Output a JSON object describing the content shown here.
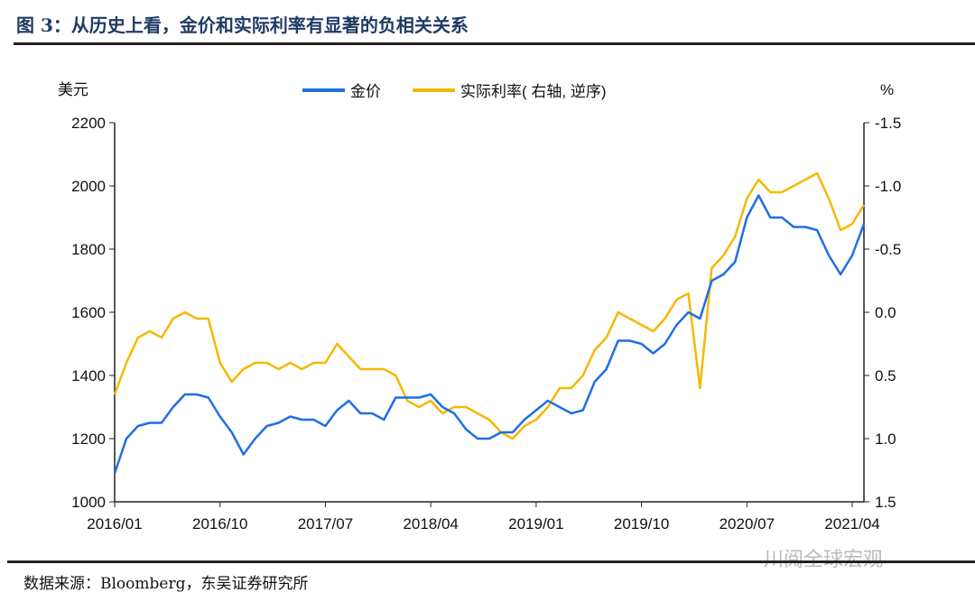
{
  "title": "图 3：从历史上看，金价和实际利率有显著的负相关关系",
  "source": "数据来源：Bloomberg，东吴证券研究所",
  "watermark": "川阅全球宏观",
  "chart_data": {
    "type": "line",
    "left_unit": "美元",
    "right_unit": "%",
    "left_ylim": [
      1000,
      2200
    ],
    "left_ticks": [
      "1000",
      "1200",
      "1400",
      "1600",
      "1800",
      "2000",
      "2200"
    ],
    "right_ylim": [
      1.5,
      -1.5
    ],
    "right_ticks": [
      "1.5",
      "1.0",
      "0.5",
      "0.0",
      "-0.5",
      "-1.0",
      "-1.5"
    ],
    "x_ticks": [
      "2016/01",
      "2016/10",
      "2017/07",
      "2018/04",
      "2019/01",
      "2019/10",
      "2020/07",
      "2021/04"
    ],
    "x_start": "2016/01",
    "x_step": "month",
    "legend": "top-center",
    "series": [
      {
        "name": "金价",
        "axis": "left",
        "color": "#1f6fe5",
        "values": [
          1090,
          1200,
          1240,
          1250,
          1250,
          1300,
          1340,
          1340,
          1330,
          1270,
          1220,
          1150,
          1200,
          1240,
          1250,
          1270,
          1260,
          1260,
          1240,
          1290,
          1320,
          1280,
          1280,
          1260,
          1330,
          1330,
          1330,
          1340,
          1300,
          1280,
          1230,
          1200,
          1200,
          1220,
          1220,
          1260,
          1290,
          1320,
          1300,
          1280,
          1290,
          1380,
          1420,
          1510,
          1510,
          1500,
          1470,
          1500,
          1560,
          1600,
          1580,
          1700,
          1720,
          1760,
          1900,
          1970,
          1900,
          1900,
          1870,
          1870,
          1860,
          1780,
          1720,
          1780,
          1880
        ]
      },
      {
        "name": "实际利率( 右轴, 逆序)",
        "axis": "right",
        "color": "#f6b800",
        "values": [
          0.65,
          0.4,
          0.2,
          0.15,
          0.2,
          0.05,
          0.0,
          0.05,
          0.05,
          0.4,
          0.55,
          0.45,
          0.4,
          0.4,
          0.45,
          0.4,
          0.45,
          0.4,
          0.4,
          0.25,
          0.35,
          0.45,
          0.45,
          0.45,
          0.5,
          0.7,
          0.75,
          0.7,
          0.8,
          0.75,
          0.75,
          0.8,
          0.85,
          0.95,
          1.0,
          0.9,
          0.85,
          0.75,
          0.6,
          0.6,
          0.5,
          0.3,
          0.2,
          0.0,
          0.05,
          0.1,
          0.15,
          0.05,
          -0.1,
          -0.15,
          0.6,
          -0.35,
          -0.45,
          -0.6,
          -0.9,
          -1.05,
          -0.95,
          -0.95,
          -1.0,
          -1.05,
          -1.1,
          -0.9,
          -0.65,
          -0.7,
          -0.85
        ]
      }
    ]
  }
}
